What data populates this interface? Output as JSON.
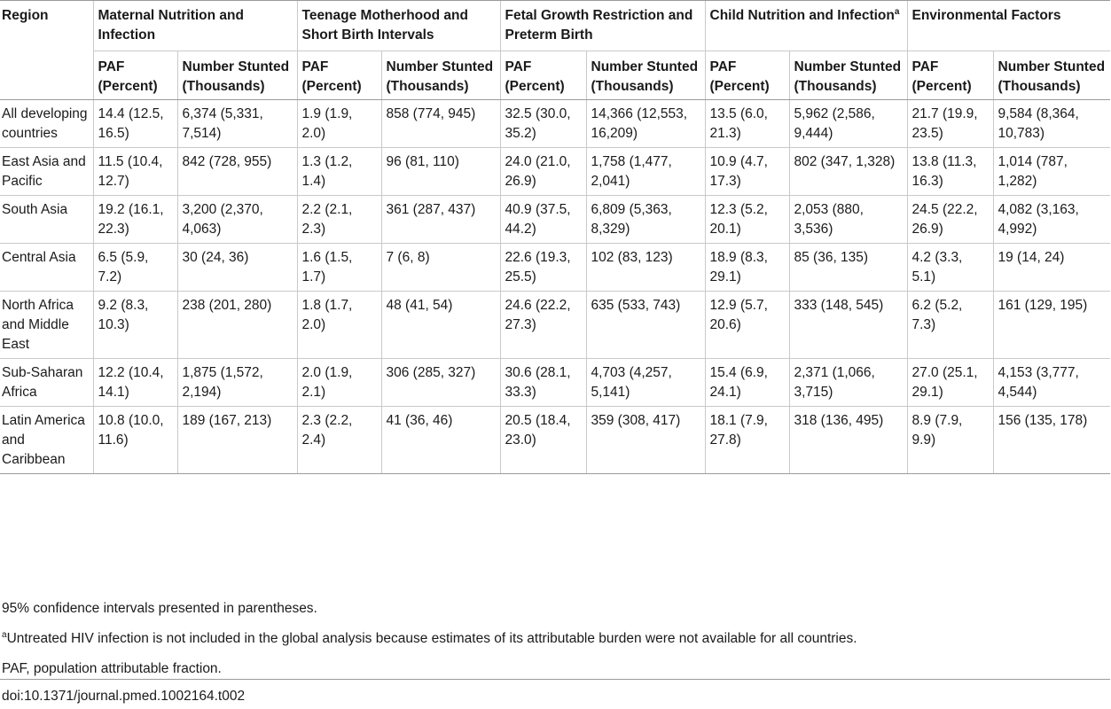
{
  "table": {
    "region_header": "Region",
    "groups": [
      {
        "label": "Maternal Nutrition and Infection",
        "sup": ""
      },
      {
        "label": "Teenage Motherhood and Short Birth Intervals",
        "sup": ""
      },
      {
        "label": "Fetal Growth Restriction and Preterm Birth",
        "sup": ""
      },
      {
        "label": "Child Nutrition and Infection",
        "sup": "a"
      },
      {
        "label": "Environmental Factors",
        "sup": ""
      }
    ],
    "sub_headers": {
      "paf": "PAF (Percent)",
      "stunted": "Number Stunted (Thousands)"
    },
    "rows": [
      {
        "region": "All developing countries",
        "cells": [
          "14.4 (12.5, 16.5)",
          "6,374 (5,331, 7,514)",
          "1.9 (1.9, 2.0)",
          "858 (774, 945)",
          "32.5 (30.0, 35.2)",
          "14,366 (12,553, 16,209)",
          "13.5 (6.0, 21.3)",
          "5,962 (2,586, 9,444)",
          "21.7 (19.9, 23.5)",
          "9,584 (8,364, 10,783)"
        ]
      },
      {
        "region": "East Asia and Pacific",
        "cells": [
          "11.5 (10.4, 12.7)",
          "842 (728, 955)",
          "1.3 (1.2, 1.4)",
          "96 (81, 110)",
          "24.0 (21.0, 26.9)",
          "1,758 (1,477, 2,041)",
          "10.9 (4.7, 17.3)",
          "802 (347, 1,328)",
          "13.8 (11.3, 16.3)",
          "1,014 (787, 1,282)"
        ]
      },
      {
        "region": "South Asia",
        "cells": [
          "19.2 (16.1, 22.3)",
          "3,200 (2,370, 4,063)",
          "2.2 (2.1, 2.3)",
          "361 (287, 437)",
          "40.9 (37.5, 44.2)",
          "6,809 (5,363, 8,329)",
          "12.3 (5.2, 20.1)",
          "2,053 (880, 3,536)",
          "24.5 (22.2, 26.9)",
          "4,082 (3,163, 4,992)"
        ]
      },
      {
        "region": "Central Asia",
        "cells": [
          "6.5 (5.9, 7.2)",
          "30 (24, 36)",
          "1.6 (1.5, 1.7)",
          "7 (6, 8)",
          "22.6 (19.3, 25.5)",
          "102 (83, 123)",
          "18.9 (8.3, 29.1)",
          "85 (36, 135)",
          "4.2 (3.3, 5.1)",
          "19 (14, 24)"
        ]
      },
      {
        "region": "North Africa and Middle East",
        "cells": [
          "9.2 (8.3, 10.3)",
          "238 (201, 280)",
          "1.8 (1.7, 2.0)",
          "48 (41, 54)",
          "24.6 (22.2, 27.3)",
          "635 (533, 743)",
          "12.9 (5.7, 20.6)",
          "333 (148, 545)",
          "6.2 (5.2, 7.3)",
          "161 (129, 195)"
        ]
      },
      {
        "region": "Sub-Saharan Africa",
        "cells": [
          "12.2 (10.4, 14.1)",
          "1,875 (1,572, 2,194)",
          "2.0 (1.9, 2.1)",
          "306 (285, 327)",
          "30.6 (28.1, 33.3)",
          "4,703 (4,257, 5,141)",
          "15.4 (6.9, 24.1)",
          "2,371 (1,066, 3,715)",
          "27.0 (25.1, 29.1)",
          "4,153 (3,777, 4,544)"
        ]
      },
      {
        "region": "Latin America and Caribbean",
        "cells": [
          "10.8 (10.0, 11.6)",
          "189 (167, 213)",
          "2.3 (2.2, 2.4)",
          "41 (36, 46)",
          "20.5 (18.4, 23.0)",
          "359 (308, 417)",
          "18.1 (7.9, 27.8)",
          "318 (136, 495)",
          "8.9 (7.9, 9.9)",
          "156 (135, 178)"
        ]
      }
    ]
  },
  "notes": {
    "ci_note": "95% confidence intervals presented in parentheses.",
    "footnote_marker": "a",
    "footnote_text": "Untreated HIV infection is not included in the global analysis because estimates of its attributable burden were not available for all countries.",
    "abbrev_note": "PAF, population attributable fraction."
  },
  "doi": "doi:10.1371/journal.pmed.1002164.t002"
}
